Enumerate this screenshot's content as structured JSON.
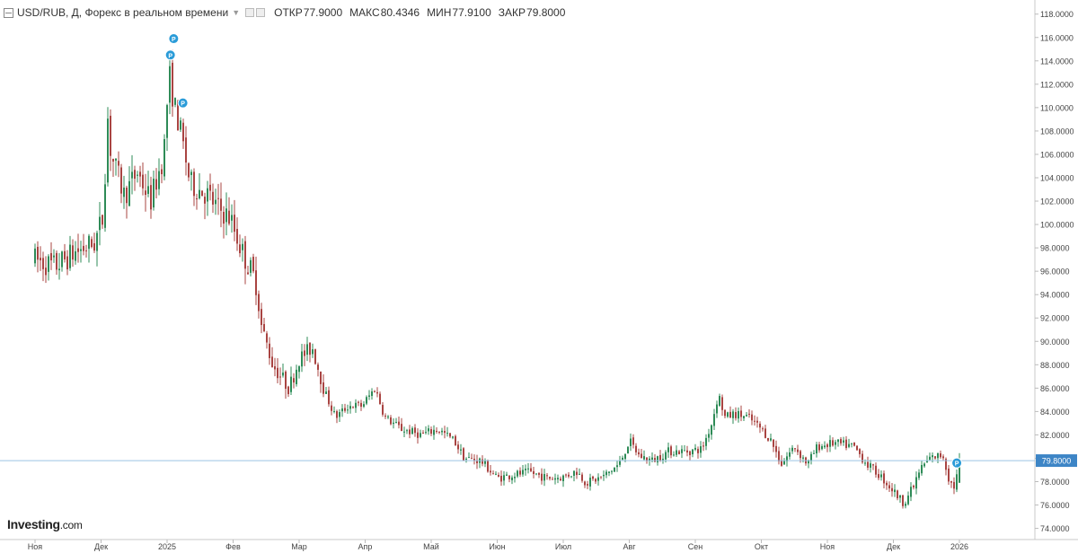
{
  "header": {
    "title": "USD/RUB, Д, Форекс в реальном времени",
    "stats": [
      {
        "label": "ОТКР",
        "value": "77.9000"
      },
      {
        "label": "МАКС",
        "value": "80.4346"
      },
      {
        "label": "МИН",
        "value": "77.9100"
      },
      {
        "label": "ЗАКР",
        "value": "79.8000"
      }
    ]
  },
  "logo": {
    "name": "Investing",
    "domain": ".com"
  },
  "colors": {
    "up": "#2e8b57",
    "down": "#a94442",
    "last_price_box": "#3d85c6",
    "marker": "#2a9bd8"
  },
  "chart_data": {
    "type": "candlestick",
    "title": "USD/RUB, Д, Форекс в реальном времени",
    "xlabel": "",
    "ylabel": "",
    "ylim": [
      73.2,
      118.9
    ],
    "y_ticks": [
      "74.0000",
      "76.0000",
      "78.0000",
      "80.0000",
      "82.0000",
      "84.0000",
      "86.0000",
      "88.0000",
      "90.0000",
      "92.0000",
      "94.0000",
      "96.0000",
      "98.0000",
      "100.0000",
      "102.0000",
      "104.0000",
      "106.0000",
      "108.0000",
      "110.0000",
      "112.0000",
      "114.0000",
      "116.0000",
      "118.0000"
    ],
    "x_ticks": [
      "Ноя",
      "Дек",
      "2025",
      "Фев",
      "Мар",
      "Апр",
      "Май",
      "Июн",
      "Июл",
      "Авг",
      "Сен",
      "Окт",
      "Ноя",
      "Дек",
      "2026"
    ],
    "last_price": "79.8000",
    "markers": [
      {
        "label": "P",
        "month_index": 2.1,
        "price": 115.9
      },
      {
        "label": "P",
        "month_index": 2.05,
        "price": 114.5
      },
      {
        "label": "P",
        "month_index": 2.24,
        "price": 110.4
      },
      {
        "label": "P",
        "month_index": 13.96,
        "price": 79.6
      }
    ],
    "path": [
      [
        0,
        97.0
      ],
      [
        0.3,
        96.4
      ],
      [
        0.6,
        97.6
      ],
      [
        0.9,
        98.4
      ],
      [
        1.05,
        101.0
      ],
      [
        1.08,
        110.5
      ],
      [
        1.15,
        106.0
      ],
      [
        1.35,
        102.5
      ],
      [
        1.55,
        104.5
      ],
      [
        1.75,
        102.0
      ],
      [
        1.95,
        106.0
      ],
      [
        2.03,
        113.0
      ],
      [
        2.1,
        110.5
      ],
      [
        2.22,
        107.5
      ],
      [
        2.35,
        103.5
      ],
      [
        2.6,
        102.6
      ],
      [
        2.75,
        101.5
      ],
      [
        2.95,
        100.6
      ],
      [
        3.15,
        97.5
      ],
      [
        3.35,
        95.0
      ],
      [
        3.42,
        91.5
      ],
      [
        3.6,
        88.0
      ],
      [
        3.85,
        86.0
      ],
      [
        4.0,
        88.5
      ],
      [
        4.2,
        89.5
      ],
      [
        4.4,
        85.5
      ],
      [
        4.55,
        83.5
      ],
      [
        4.75,
        84.5
      ],
      [
        4.95,
        84.5
      ],
      [
        5.15,
        86.0
      ],
      [
        5.3,
        83.5
      ],
      [
        5.55,
        82.5
      ],
      [
        5.85,
        82.0
      ],
      [
        6.1,
        82.5
      ],
      [
        6.35,
        81.5
      ],
      [
        6.5,
        80.0
      ],
      [
        6.75,
        79.8
      ],
      [
        7.0,
        78.3
      ],
      [
        7.25,
        78.6
      ],
      [
        7.5,
        78.8
      ],
      [
        7.75,
        78.3
      ],
      [
        8.0,
        78.4
      ],
      [
        8.2,
        78.9
      ],
      [
        8.35,
        77.9
      ],
      [
        8.6,
        78.4
      ],
      [
        8.85,
        79.5
      ],
      [
        9.0,
        81.5
      ],
      [
        9.15,
        80.2
      ],
      [
        9.35,
        79.8
      ],
      [
        9.6,
        80.6
      ],
      [
        9.9,
        80.6
      ],
      [
        10.1,
        80.8
      ],
      [
        10.25,
        83.0
      ],
      [
        10.35,
        85.5
      ],
      [
        10.45,
        83.5
      ],
      [
        10.6,
        83.8
      ],
      [
        10.8,
        83.5
      ],
      [
        11.0,
        82.5
      ],
      [
        11.15,
        81.5
      ],
      [
        11.3,
        79.5
      ],
      [
        11.5,
        81.0
      ],
      [
        11.7,
        79.5
      ],
      [
        11.85,
        81.0
      ],
      [
        12.1,
        81.3
      ],
      [
        12.4,
        81.0
      ],
      [
        12.6,
        79.5
      ],
      [
        12.8,
        78.5
      ],
      [
        13.0,
        77.2
      ],
      [
        13.15,
        76.2
      ],
      [
        13.3,
        77.5
      ],
      [
        13.4,
        79.0
      ],
      [
        13.55,
        80.0
      ],
      [
        13.75,
        80.3
      ],
      [
        13.85,
        78.0
      ],
      [
        13.93,
        77.5
      ],
      [
        14.0,
        79.8
      ]
    ]
  }
}
